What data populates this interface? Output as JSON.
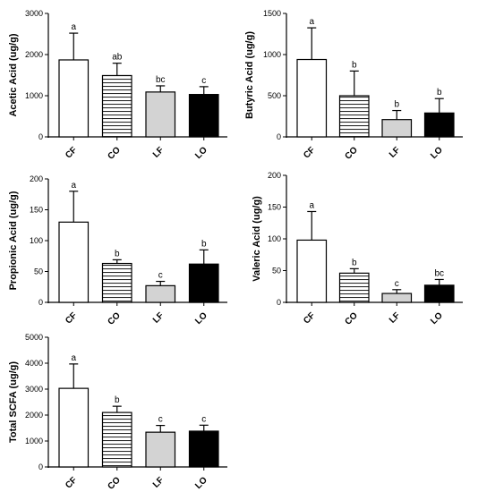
{
  "chart_data": [
    {
      "type": "bar",
      "categories": [
        "CF",
        "CO",
        "LF",
        "LO"
      ],
      "values": [
        1870,
        1490,
        1090,
        1030
      ],
      "errors": [
        650,
        300,
        150,
        190
      ],
      "letters": [
        "a",
        "ab",
        "bc",
        "c"
      ],
      "ylabel": "Acetic Acid (ug/g)",
      "ylim": [
        0,
        3000
      ],
      "yticks": [
        0,
        1000,
        2000,
        3000
      ],
      "grid": false
    },
    {
      "type": "bar",
      "categories": [
        "CF",
        "CO",
        "LF",
        "LO"
      ],
      "values": [
        940,
        500,
        210,
        290
      ],
      "errors": [
        385,
        300,
        110,
        175
      ],
      "letters": [
        "a",
        "b",
        "b",
        "b"
      ],
      "ylabel": "Butyric Acid (ug/g)",
      "ylim": [
        0,
        1500
      ],
      "yticks": [
        0,
        500,
        1000,
        1500
      ],
      "grid": false
    },
    {
      "type": "bar",
      "categories": [
        "CF",
        "CO",
        "LF",
        "LO"
      ],
      "values": [
        130,
        63,
        27,
        62
      ],
      "errors": [
        50,
        6,
        7,
        23
      ],
      "letters": [
        "a",
        "b",
        "c",
        "b"
      ],
      "ylabel": "Propionic Acid (ug/g)",
      "ylim": [
        0,
        200
      ],
      "yticks": [
        0,
        50,
        100,
        150,
        200
      ],
      "grid": false
    },
    {
      "type": "bar",
      "categories": [
        "CF",
        "CO",
        "LF",
        "LO"
      ],
      "values": [
        98,
        46,
        14,
        27
      ],
      "errors": [
        45,
        7,
        6,
        9
      ],
      "letters": [
        "a",
        "b",
        "c",
        "bc"
      ],
      "ylabel": "Valeric Acid (ug/g)",
      "ylim": [
        0,
        200
      ],
      "yticks": [
        0,
        50,
        100,
        150,
        200
      ],
      "grid": false
    },
    {
      "type": "bar",
      "categories": [
        "CF",
        "CO",
        "LF",
        "LO"
      ],
      "values": [
        3030,
        2100,
        1340,
        1380
      ],
      "errors": [
        940,
        240,
        260,
        230
      ],
      "letters": [
        "a",
        "b",
        "c",
        "c"
      ],
      "ylabel": "Total SCFA (ug/g)",
      "ylim": [
        0,
        5000
      ],
      "yticks": [
        0,
        1000,
        2000,
        3000,
        4000,
        5000
      ],
      "grid": false
    }
  ],
  "bar_fills": [
    "#ffffff",
    "hatch",
    "#d3d3d3",
    "#000000"
  ],
  "colors": {
    "axis": "#000000",
    "bar_stroke": "#000000",
    "hatch_line": "#000000"
  }
}
